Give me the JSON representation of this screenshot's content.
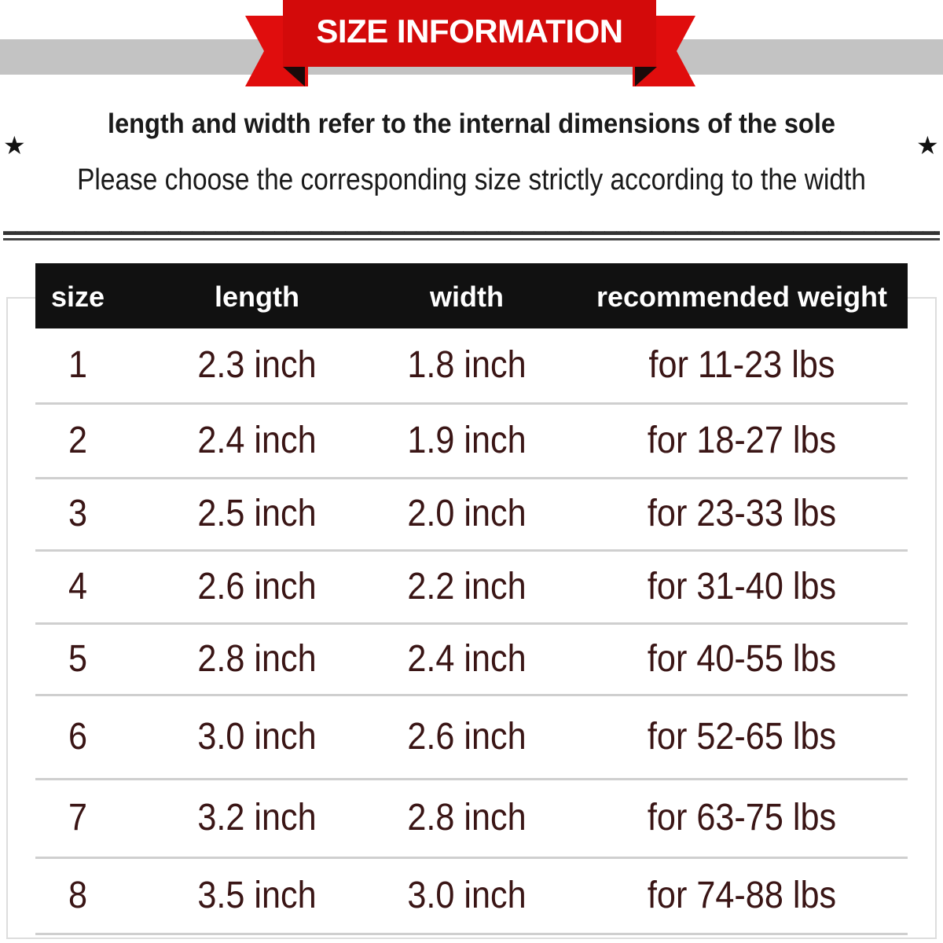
{
  "banner": {
    "title": "SIZE INFORMATION"
  },
  "notes": {
    "line1": "length and width refer to the internal dimensions of the sole",
    "line2": "Please choose the corresponding size strictly according to the width",
    "star": "★"
  },
  "table": {
    "headers": [
      "size",
      "length",
      "width",
      "recommended weight"
    ],
    "rows": [
      [
        "1",
        "2.3 inch",
        "1.8 inch",
        "for 11-23 lbs"
      ],
      [
        "2",
        "2.4 inch",
        "1.9 inch",
        "for 18-27 lbs"
      ],
      [
        "3",
        "2.5 inch",
        "2.0 inch",
        "for 23-33 lbs"
      ],
      [
        "4",
        "2.6 inch",
        "2.2 inch",
        "for 31-40 lbs"
      ],
      [
        "5",
        "2.8 inch",
        "2.4 inch",
        "for 40-55 lbs"
      ],
      [
        "6",
        "3.0 inch",
        "2.6 inch",
        "for 52-65 lbs"
      ],
      [
        "7",
        "3.2 inch",
        "2.8 inch",
        "for 63-75 lbs"
      ],
      [
        "8",
        "3.5 inch",
        "3.0 inch",
        "for 74-88 lbs"
      ]
    ]
  },
  "colors": {
    "banner": "#d30a0a",
    "header_bg": "#111111",
    "text": "#3a1515"
  }
}
